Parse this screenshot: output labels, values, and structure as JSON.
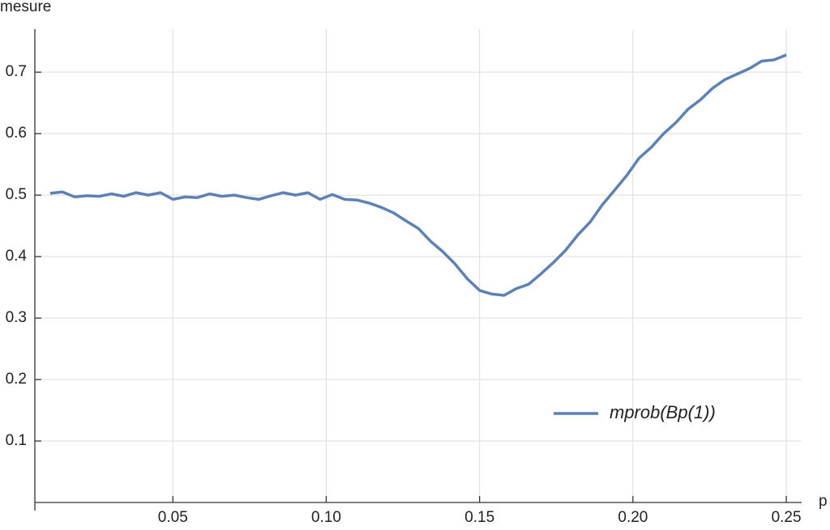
{
  "chart_data": {
    "type": "line",
    "x_label": "p",
    "y_label": "mesure",
    "x": [
      0.01,
      0.014,
      0.018,
      0.022,
      0.026,
      0.03,
      0.034,
      0.038,
      0.042,
      0.046,
      0.05,
      0.054,
      0.058,
      0.062,
      0.066,
      0.07,
      0.074,
      0.078,
      0.082,
      0.086,
      0.09,
      0.094,
      0.098,
      0.102,
      0.106,
      0.11,
      0.114,
      0.118,
      0.122,
      0.126,
      0.13,
      0.134,
      0.138,
      0.142,
      0.146,
      0.15,
      0.154,
      0.158,
      0.162,
      0.166,
      0.17,
      0.174,
      0.178,
      0.182,
      0.186,
      0.19,
      0.194,
      0.198,
      0.202,
      0.206,
      0.21,
      0.214,
      0.218,
      0.222,
      0.226,
      0.23,
      0.234,
      0.238,
      0.242,
      0.246,
      0.25
    ],
    "series": [
      {
        "name": "mprob(Bp(1))",
        "color": "#5e81b5",
        "values": [
          0.503,
          0.505,
          0.497,
          0.499,
          0.498,
          0.502,
          0.498,
          0.504,
          0.5,
          0.504,
          0.493,
          0.497,
          0.496,
          0.502,
          0.498,
          0.5,
          0.496,
          0.493,
          0.499,
          0.504,
          0.5,
          0.504,
          0.493,
          0.501,
          0.493,
          0.492,
          0.487,
          0.48,
          0.471,
          0.458,
          0.446,
          0.425,
          0.408,
          0.388,
          0.364,
          0.345,
          0.339,
          0.337,
          0.348,
          0.355,
          0.372,
          0.39,
          0.41,
          0.435,
          0.456,
          0.484,
          0.508,
          0.532,
          0.56,
          0.578,
          0.6,
          0.618,
          0.64,
          0.655,
          0.674,
          0.688,
          0.697,
          0.706,
          0.718,
          0.72,
          0.728
        ]
      }
    ],
    "xlim": [
      0.005,
      0.255
    ],
    "ylim": [
      0,
      0.77
    ],
    "xticks": [
      0.05,
      {
        "value": 0.1,
        "label": "0.10"
      },
      0.15,
      {
        "value": 0.2,
        "label": "0.20"
      },
      0.25
    ],
    "yticks": [
      0.1,
      0.2,
      0.3,
      0.4,
      0.5,
      0.6,
      0.7
    ],
    "grid": true
  }
}
